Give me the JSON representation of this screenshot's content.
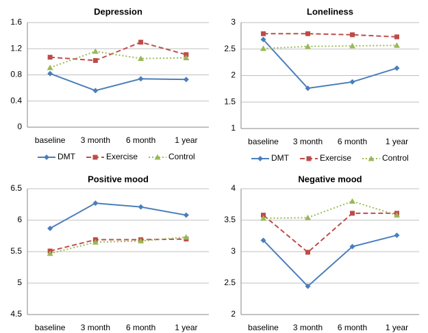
{
  "chart_data": [
    {
      "type": "line",
      "title": "Depression",
      "categories": [
        "baseline",
        "3 month",
        "6 month",
        "1 year"
      ],
      "ylim": [
        0,
        1.6
      ],
      "yticks": [
        0,
        0.4,
        0.8,
        1.2,
        1.6
      ],
      "grid": true,
      "legend": "bottom",
      "series": [
        {
          "name": "DMT",
          "color": "#4a7ebb",
          "dash": "solid",
          "marker": "diamond",
          "values": [
            0.82,
            0.56,
            0.74,
            0.73
          ]
        },
        {
          "name": "Exercise",
          "color": "#be4b48",
          "dash": "dashed",
          "marker": "square",
          "values": [
            1.07,
            1.02,
            1.3,
            1.11
          ]
        },
        {
          "name": "Control",
          "color": "#98b954",
          "dash": "dotted",
          "marker": "triangle",
          "values": [
            0.91,
            1.16,
            1.05,
            1.06
          ]
        }
      ]
    },
    {
      "type": "line",
      "title": "Loneliness",
      "categories": [
        "baseline",
        "3 month",
        "6 month",
        "1 year"
      ],
      "ylim": [
        1,
        3
      ],
      "yticks": [
        1,
        1.5,
        2,
        2.5,
        3
      ],
      "grid": true,
      "legend": "bottom",
      "series": [
        {
          "name": "DMT",
          "color": "#4a7ebb",
          "dash": "solid",
          "marker": "diamond",
          "values": [
            2.68,
            1.76,
            1.88,
            2.14
          ]
        },
        {
          "name": "Exercise",
          "color": "#be4b48",
          "dash": "dashed",
          "marker": "square",
          "values": [
            2.79,
            2.79,
            2.77,
            2.73
          ]
        },
        {
          "name": "Control",
          "color": "#98b954",
          "dash": "dotted",
          "marker": "triangle",
          "values": [
            2.51,
            2.55,
            2.56,
            2.57
          ]
        }
      ]
    },
    {
      "type": "line",
      "title": "Positive mood",
      "categories": [
        "baseline",
        "3 month",
        "6 month",
        "1 year"
      ],
      "ylim": [
        4.5,
        6.5
      ],
      "yticks": [
        4.5,
        5,
        5.5,
        6,
        6.5
      ],
      "grid": true,
      "series": [
        {
          "color": "#4a7ebb",
          "dash": "solid",
          "marker": "diamond",
          "values": [
            5.87,
            6.27,
            6.21,
            6.08
          ]
        },
        {
          "color": "#be4b48",
          "dash": "dashed",
          "marker": "square",
          "values": [
            5.51,
            5.69,
            5.69,
            5.7
          ]
        },
        {
          "color": "#98b954",
          "dash": "dotted",
          "marker": "triangle",
          "values": [
            5.47,
            5.65,
            5.67,
            5.73
          ]
        }
      ]
    },
    {
      "type": "line",
      "title": "Negative mood",
      "categories": [
        "baseline",
        "3 month",
        "6 month",
        "1 year"
      ],
      "ylim": [
        2,
        4
      ],
      "yticks": [
        2,
        2.5,
        3,
        3.5,
        4
      ],
      "grid": true,
      "series": [
        {
          "color": "#4a7ebb",
          "dash": "solid",
          "marker": "diamond",
          "values": [
            3.18,
            2.45,
            3.08,
            3.26
          ]
        },
        {
          "color": "#be4b48",
          "dash": "dashed",
          "marker": "square",
          "values": [
            3.58,
            2.99,
            3.61,
            3.61
          ]
        },
        {
          "color": "#98b954",
          "dash": "dotted",
          "marker": "triangle",
          "values": [
            3.53,
            3.54,
            3.8,
            3.58
          ]
        }
      ]
    }
  ]
}
